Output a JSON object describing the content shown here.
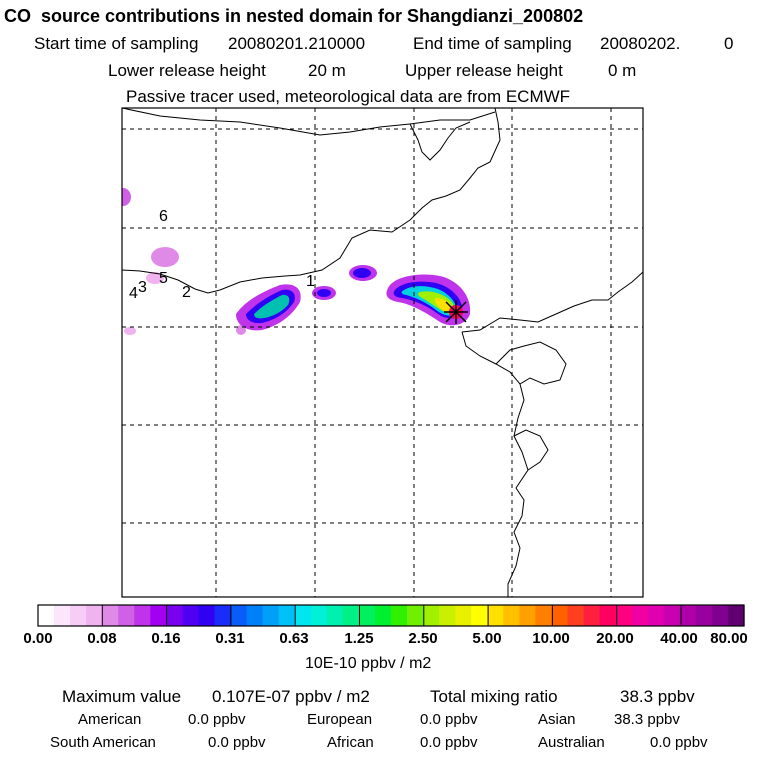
{
  "header": {
    "title": "CO  source contributions in nested domain for Shangdianzi_200802",
    "start_label": "Start time of sampling",
    "start_value": "20080201.210000",
    "end_label": "End time of sampling",
    "end_value": "20080202.",
    "end_suffix": "0",
    "lower_label": "Lower release height",
    "lower_value": "20 m",
    "upper_label": "Upper release height",
    "upper_value": "0 m",
    "note": "Passive tracer used, meteorological data are from ECMWF"
  },
  "map": {
    "point_labels": [
      "1",
      "2",
      "3",
      "4",
      "5",
      "6"
    ]
  },
  "colorbar": {
    "tick_labels": [
      "0.00",
      "0.08",
      "0.16",
      "0.31",
      "0.63",
      "1.25",
      "2.50",
      "5.00",
      "10.00",
      "20.00",
      "40.00",
      "80.00"
    ],
    "units": "10E-10 ppbv / m2",
    "colors": [
      "#ffffff",
      "#fbe6fb",
      "#f6cdf6",
      "#f0b3f0",
      "#e08ae8",
      "#d060e6",
      "#bf33ea",
      "#a200f0",
      "#7a00f0",
      "#5000f0",
      "#3000f4",
      "#1a2cf8",
      "#0a5cf8",
      "#0080f8",
      "#00a0f8",
      "#00c0f8",
      "#00e6f0",
      "#00f0d8",
      "#00f0b0",
      "#00f088",
      "#00f060",
      "#00f030",
      "#30f000",
      "#70f000",
      "#a0f000",
      "#c8f000",
      "#e8f000",
      "#ffff00",
      "#ffe000",
      "#ffc000",
      "#ffa000",
      "#ff8000",
      "#ff6000",
      "#ff4020",
      "#ff2040",
      "#ff0060",
      "#ff0080",
      "#f000a0",
      "#e000b0",
      "#c800b0",
      "#b000a8",
      "#9800a0",
      "#800090",
      "#600070"
    ]
  },
  "stats": {
    "max_label": "Maximum value",
    "max_value": "0.107E-07 ppbv / m2",
    "total_label": "Total mixing ratio",
    "total_value": "38.3 ppbv",
    "regions": [
      {
        "name": "American",
        "value": "0.0 ppbv"
      },
      {
        "name": "European",
        "value": "0.0 ppbv"
      },
      {
        "name": "Asian",
        "value": "38.3 ppbv"
      },
      {
        "name": "South American",
        "value": "0.0 ppbv"
      },
      {
        "name": "African",
        "value": "0.0 ppbv"
      },
      {
        "name": "Australian",
        "value": "0.0 ppbv"
      }
    ]
  }
}
